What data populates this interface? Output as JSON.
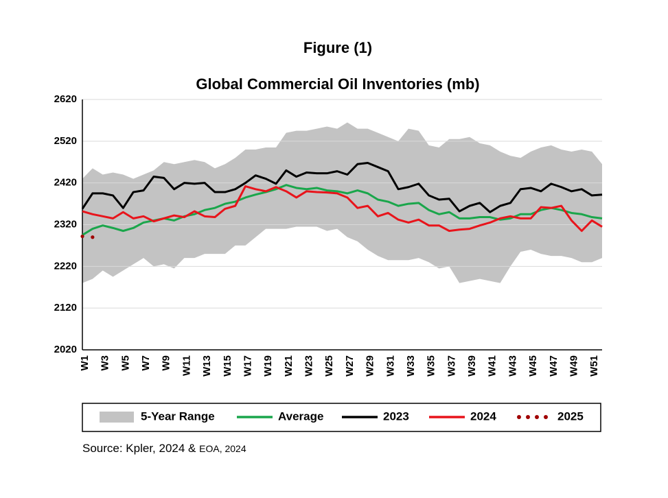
{
  "chart_data": {
    "type": "line",
    "figure_label": "Figure (1)",
    "title": "Global Commercial Oil Inventories (mb)",
    "source": "Source: Kpler, 2024 &",
    "source_note": "EOA, 2024",
    "categories": [
      "W1",
      null,
      "W3",
      null,
      "W5",
      null,
      "W7",
      null,
      "W9",
      null,
      "W11",
      null,
      "W13",
      null,
      "W15",
      null,
      "W17",
      null,
      "W19",
      null,
      "W21",
      null,
      "W23",
      null,
      "W25",
      null,
      "W27",
      null,
      "W29",
      null,
      "W31",
      null,
      "W33",
      null,
      "W35",
      null,
      "W37",
      null,
      "W39",
      null,
      "W41",
      null,
      "W43",
      null,
      "W45",
      null,
      "W47",
      null,
      "W49",
      null,
      "W51",
      null
    ],
    "ylim": [
      2020,
      2620
    ],
    "yticks": [
      2020,
      2120,
      2220,
      2320,
      2420,
      2520,
      2620
    ],
    "grid": true,
    "series": [
      {
        "name": "5-Year Range",
        "style": "area",
        "color": "#c3c3c3",
        "values": [
          2430,
          2455,
          2440,
          2445,
          2440,
          2430,
          2440,
          2450,
          2470,
          2465,
          2470,
          2475,
          2470,
          2455,
          2465,
          2480,
          2500,
          2500,
          2505,
          2505,
          2540,
          2545,
          2545,
          2550,
          2555,
          2550,
          2565,
          2550,
          2550,
          2540,
          2530,
          2520,
          2550,
          2545,
          2510,
          2505,
          2525,
          2525,
          2530,
          2515,
          2510,
          2495,
          2485,
          2480,
          2495,
          2505,
          2510,
          2500,
          2495,
          2500,
          2495,
          2465
        ],
        "lower": [
          2180,
          2190,
          2210,
          2195,
          2210,
          2225,
          2240,
          2220,
          2225,
          2215,
          2240,
          2240,
          2250,
          2250,
          2250,
          2270,
          2270,
          2290,
          2310,
          2310,
          2310,
          2315,
          2315,
          2315,
          2305,
          2310,
          2290,
          2280,
          2260,
          2245,
          2235,
          2235,
          2235,
          2240,
          2230,
          2215,
          2220,
          2180,
          2185,
          2190,
          2185,
          2180,
          2220,
          2255,
          2260,
          2250,
          2245,
          2245,
          2240,
          2230,
          2230,
          2240
        ]
      },
      {
        "name": "Average",
        "style": "line",
        "color": "#1aa64b",
        "values": [
          2295,
          2310,
          2318,
          2312,
          2305,
          2312,
          2325,
          2330,
          2335,
          2330,
          2340,
          2345,
          2355,
          2360,
          2370,
          2375,
          2385,
          2392,
          2398,
          2405,
          2415,
          2408,
          2405,
          2408,
          2402,
          2400,
          2395,
          2402,
          2395,
          2380,
          2375,
          2365,
          2370,
          2372,
          2355,
          2345,
          2350,
          2335,
          2335,
          2338,
          2338,
          2332,
          2335,
          2345,
          2345,
          2355,
          2360,
          2355,
          2348,
          2345,
          2338,
          2335
        ]
      },
      {
        "name": "2023",
        "style": "line",
        "color": "#000000",
        "values": [
          2358,
          2395,
          2395,
          2390,
          2360,
          2398,
          2402,
          2435,
          2432,
          2405,
          2420,
          2418,
          2420,
          2398,
          2398,
          2405,
          2420,
          2438,
          2430,
          2418,
          2450,
          2435,
          2445,
          2443,
          2443,
          2448,
          2440,
          2465,
          2468,
          2458,
          2448,
          2405,
          2410,
          2418,
          2390,
          2380,
          2382,
          2352,
          2365,
          2372,
          2350,
          2365,
          2372,
          2405,
          2408,
          2400,
          2418,
          2410,
          2400,
          2405,
          2390,
          2392
        ]
      },
      {
        "name": "2024",
        "style": "line",
        "color": "#e8141b",
        "values": [
          2352,
          2345,
          2340,
          2335,
          2350,
          2335,
          2340,
          2328,
          2335,
          2342,
          2338,
          2352,
          2340,
          2338,
          2358,
          2365,
          2412,
          2405,
          2400,
          2410,
          2400,
          2385,
          2400,
          2398,
          2397,
          2395,
          2385,
          2360,
          2365,
          2340,
          2348,
          2332,
          2325,
          2332,
          2318,
          2318,
          2305,
          2308,
          2310,
          2318,
          2325,
          2335,
          2340,
          2335,
          2335,
          2362,
          2360,
          2365,
          2330,
          2305,
          2330,
          2315
        ]
      },
      {
        "name": "2025",
        "style": "dotted",
        "color": "#a00000",
        "values": [
          2292,
          2290,
          null,
          null,
          null,
          null,
          null,
          null,
          null,
          null,
          null,
          null,
          null,
          null,
          null,
          null,
          null,
          null,
          null,
          null,
          null,
          null,
          null,
          null,
          null,
          null,
          null,
          null,
          null,
          null,
          null,
          null,
          null,
          null,
          null,
          null,
          null,
          null,
          null,
          null,
          null,
          null,
          null,
          null,
          null,
          null,
          null,
          null,
          null,
          null,
          null,
          null
        ]
      }
    ]
  }
}
